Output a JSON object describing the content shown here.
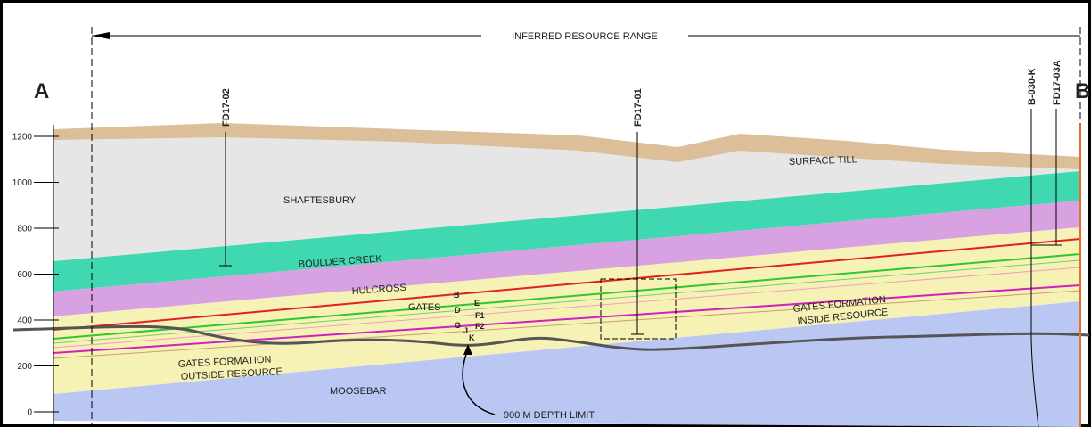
{
  "header": {
    "range_label": "INFERRED RESOURCE RANGE",
    "section_start": "A",
    "section_end": "B"
  },
  "wells": [
    {
      "label": "FD17-02"
    },
    {
      "label": "FD17-01"
    },
    {
      "label": "B-030-K"
    },
    {
      "label": "FD17-03A"
    }
  ],
  "elevation_ticks": [
    1200,
    1000,
    800,
    600,
    400,
    200,
    0
  ],
  "units": [
    {
      "label": "SURFACE TILL"
    },
    {
      "label": "SHAFTESBURY"
    },
    {
      "label": "BOULDER CREEK"
    },
    {
      "label": "HULCROSS"
    },
    {
      "label": "GATES"
    },
    {
      "label_lines": [
        "GATES FORMATION",
        "INSIDE RESOURCE"
      ]
    },
    {
      "label_lines": [
        "GATES FORMATION",
        "OUTSIDE RESOURCE"
      ]
    },
    {
      "label": "MOOSEBAR"
    }
  ],
  "seam_markers": [
    "B",
    "E",
    "D",
    "F1",
    "G",
    "F2",
    "J",
    "K"
  ],
  "annotations": {
    "depth_limit": "900 M DEPTH LIMIT"
  }
}
